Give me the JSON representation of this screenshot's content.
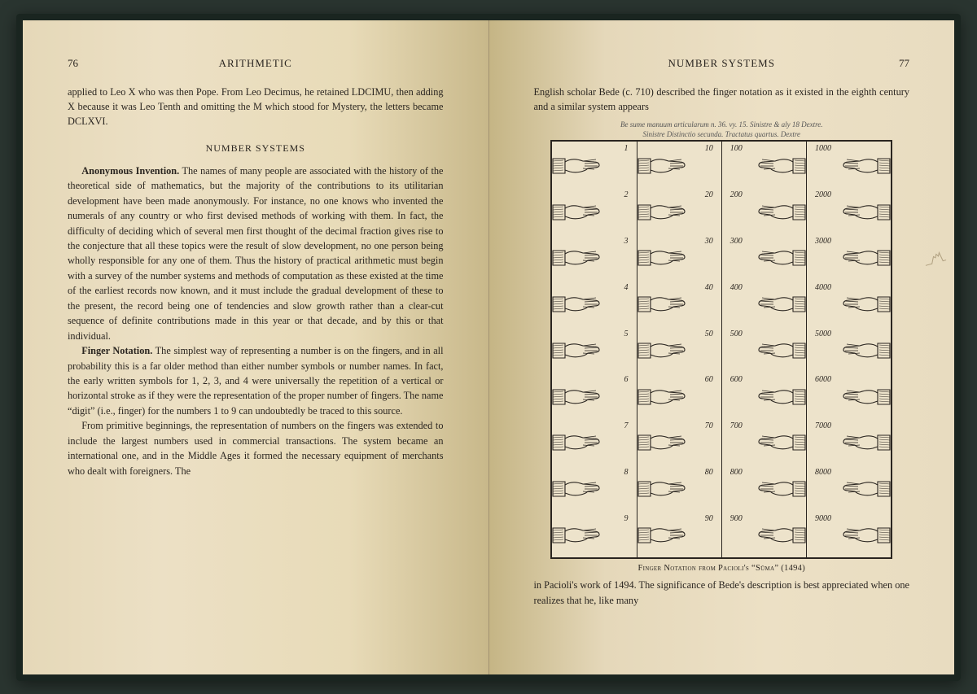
{
  "left_page": {
    "number": "76",
    "running_head": "ARITHMETIC",
    "para1": "applied to Leo X who was then Pope. From Leo Decimus, he retained LDCIMU, then adding X because it was Leo Tenth and omitting the M which stood for Mystery, the letters became DCLXVI.",
    "section_head": "NUMBER SYSTEMS",
    "para2_runin": "Anonymous Invention.",
    "para2": " The names of many people are associated with the history of the theoretical side of mathematics, but the majority of the contributions to its utilitarian development have been made anonymously. For instance, no one knows who invented the numerals of any country or who first devised methods of working with them. In fact, the difficulty of deciding which of several men first thought of the decimal fraction gives rise to the conjecture that all these topics were the result of slow development, no one person being wholly responsible for any one of them. Thus the history of practical arithmetic must begin with a survey of the number systems and methods of computation as these existed at the time of the earliest records now known, and it must include the gradual development of these to the present, the record being one of tendencies and slow growth rather than a clear-cut sequence of definite contributions made in this year or that decade, and by this or that individual.",
    "para3_runin": "Finger Notation.",
    "para3": " The simplest way of representing a number is on the fingers, and in all probability this is a far older method than either number symbols or number names. In fact, the early written symbols for 1, 2, 3, and 4 were universally the repetition of a vertical or horizontal stroke as if they were the representation of the proper number of fingers. The name “digit” (i.e., finger) for the numbers 1 to 9 can undoubtedly be traced to this source.",
    "para4": "From primitive beginnings, the representation of numbers on the fingers was extended to include the largest numbers used in commercial transactions. The system became an international one, and in the Middle Ages it formed the necessary equipment of merchants who dealt with foreigners. The"
  },
  "right_page": {
    "number": "77",
    "running_head": "NUMBER SYSTEMS",
    "para1": "English scholar Bede (c. 710) described the finger notation as it existed in the eighth century and a similar system appears",
    "handwriting_top": "Be sume manuum articularum n. 36. vy. 15. Sinistre & aly 18 Dextre.",
    "handwriting_sub": "Sinistre            Distinctio secunda. Tractatus quartus.            Dextre",
    "caption": "Finger Notation from Pacioli's “Sūma” (1494)",
    "para2": "in Pacioli's work of 1494. The significance of Bede's description is best appreciated when one realizes that he, like many",
    "table": {
      "col1": [
        "1",
        "2",
        "3",
        "4",
        "5",
        "6",
        "7",
        "8",
        "9"
      ],
      "col2": [
        "10",
        "20",
        "30",
        "40",
        "50",
        "60",
        "70",
        "80",
        "90"
      ],
      "col3": [
        "100",
        "200",
        "300",
        "400",
        "500",
        "600",
        "700",
        "800",
        "900"
      ],
      "col4": [
        "1000",
        "2000",
        "3000",
        "4000",
        "5000",
        "6000",
        "7000",
        "8000",
        "9000"
      ]
    }
  },
  "colors": {
    "text": "#2a2520",
    "page_bg": "#ece0c5",
    "cover": "#1a2520"
  }
}
